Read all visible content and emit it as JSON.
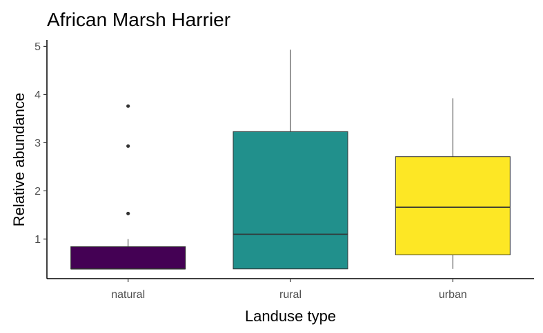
{
  "chart_data": {
    "type": "boxplot",
    "title": "African Marsh Harrier",
    "xlabel": "Landuse type",
    "ylabel": "Relative abundance",
    "ylim": [
      0.25,
      5.05
    ],
    "yticks": [
      1,
      2,
      3,
      4,
      5
    ],
    "grid": false,
    "legend": "none",
    "categories": [
      "natural",
      "rural",
      "urban"
    ],
    "boxes": [
      {
        "category": "natural",
        "color": "#440154",
        "whisker_low": 0.38,
        "q1": 0.38,
        "median": 0.38,
        "q3": 0.84,
        "whisker_high": 1.0,
        "outliers": [
          1.53,
          2.93,
          3.76
        ]
      },
      {
        "category": "rural",
        "color": "#21908C",
        "whisker_low": 0.38,
        "q1": 0.38,
        "median": 1.1,
        "q3": 3.23,
        "whisker_high": 4.93,
        "outliers": []
      },
      {
        "category": "urban",
        "color": "#FDE725",
        "whisker_low": 0.38,
        "q1": 0.67,
        "median": 1.66,
        "q3": 2.71,
        "whisker_high": 3.92,
        "outliers": []
      }
    ]
  }
}
